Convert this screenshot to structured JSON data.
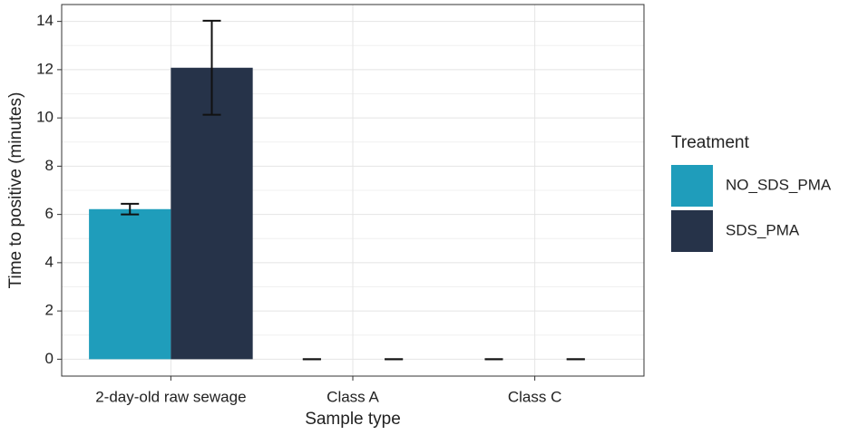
{
  "chart_data": {
    "type": "bar",
    "categories": [
      "2-day-old raw sewage",
      "Class A",
      "Class C"
    ],
    "x_label": "Sample type",
    "y_label": "Time to positive (minutes)",
    "legend_title": "Treatment",
    "series": [
      {
        "name": "NO_SDS_PMA",
        "color": "#1f9dbb",
        "values": [
          6.22,
          0,
          0
        ],
        "errors": [
          0.22,
          0,
          0
        ]
      },
      {
        "name": "SDS_PMA",
        "color": "#263349",
        "values": [
          12.08,
          0,
          0
        ],
        "errors": [
          1.95,
          0,
          0
        ]
      }
    ],
    "ylim": [
      -0.7,
      14.7
    ],
    "yticks": [
      0,
      2,
      4,
      6,
      8,
      10,
      12,
      14
    ],
    "grid": true,
    "legend_position": "right"
  }
}
